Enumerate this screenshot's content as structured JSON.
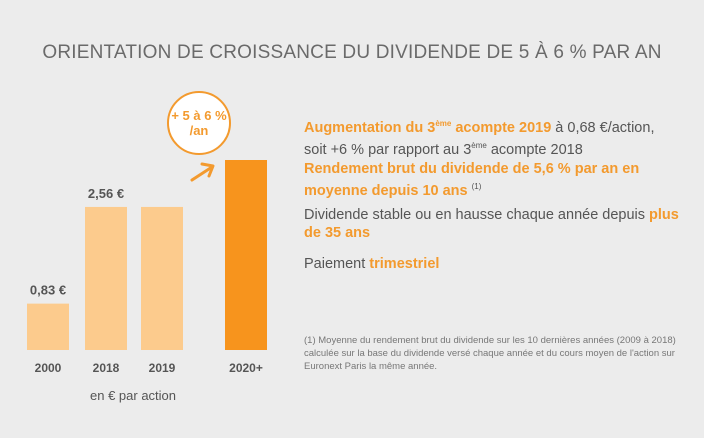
{
  "title": "ORIENTATION DE CROISSANCE DU DIVIDENDE DE 5 À 6 % PAR AN",
  "badge": {
    "line1": "+ 5 à 6 %",
    "line2": "/an"
  },
  "unit_label": "en € par action",
  "paragraphs": {
    "p1": {
      "hl1": "Augmentation du 3",
      "hl_sup": "ème",
      "hl2": " acompte 2019",
      "text1": " à 0,68 €/action,",
      "text2": "soit +6 % par rapport au 3",
      "sup2": "ème",
      "text3": " acompte 2018"
    },
    "p2": {
      "hl": "Rendement brut du dividende de 5,6 % par an en moyenne depuis 10 ans",
      "sup": "(1)"
    },
    "p3": {
      "text": "Dividende stable ou en hausse chaque année depuis ",
      "hl": "plus de 35 ans"
    },
    "p4": {
      "text": "Paiement ",
      "hl": "trimestriel"
    }
  },
  "footnote": "(1) Moyenne du rendement brut du dividende sur les 10 dernières années (2009 à 2018) calculée sur la base du dividende versé chaque année et du cours moyen de l'action sur Euronext Paris la même année.",
  "colors": {
    "light_bar": "#fccb8d",
    "accent": "#f7941d",
    "text_accent": "#f39a2e"
  },
  "chart_data": {
    "type": "bar",
    "categories": [
      "2000",
      "2018",
      "2019",
      "2020+"
    ],
    "values": [
      0.83,
      2.56,
      2.56,
      3.4
    ],
    "value_labels": [
      "0,83 €",
      "2,56 €",
      "",
      ""
    ],
    "highlight_index": 3,
    "title": "",
    "xlabel": "",
    "ylabel": "en € par action",
    "ylim": [
      0,
      3.4
    ]
  }
}
